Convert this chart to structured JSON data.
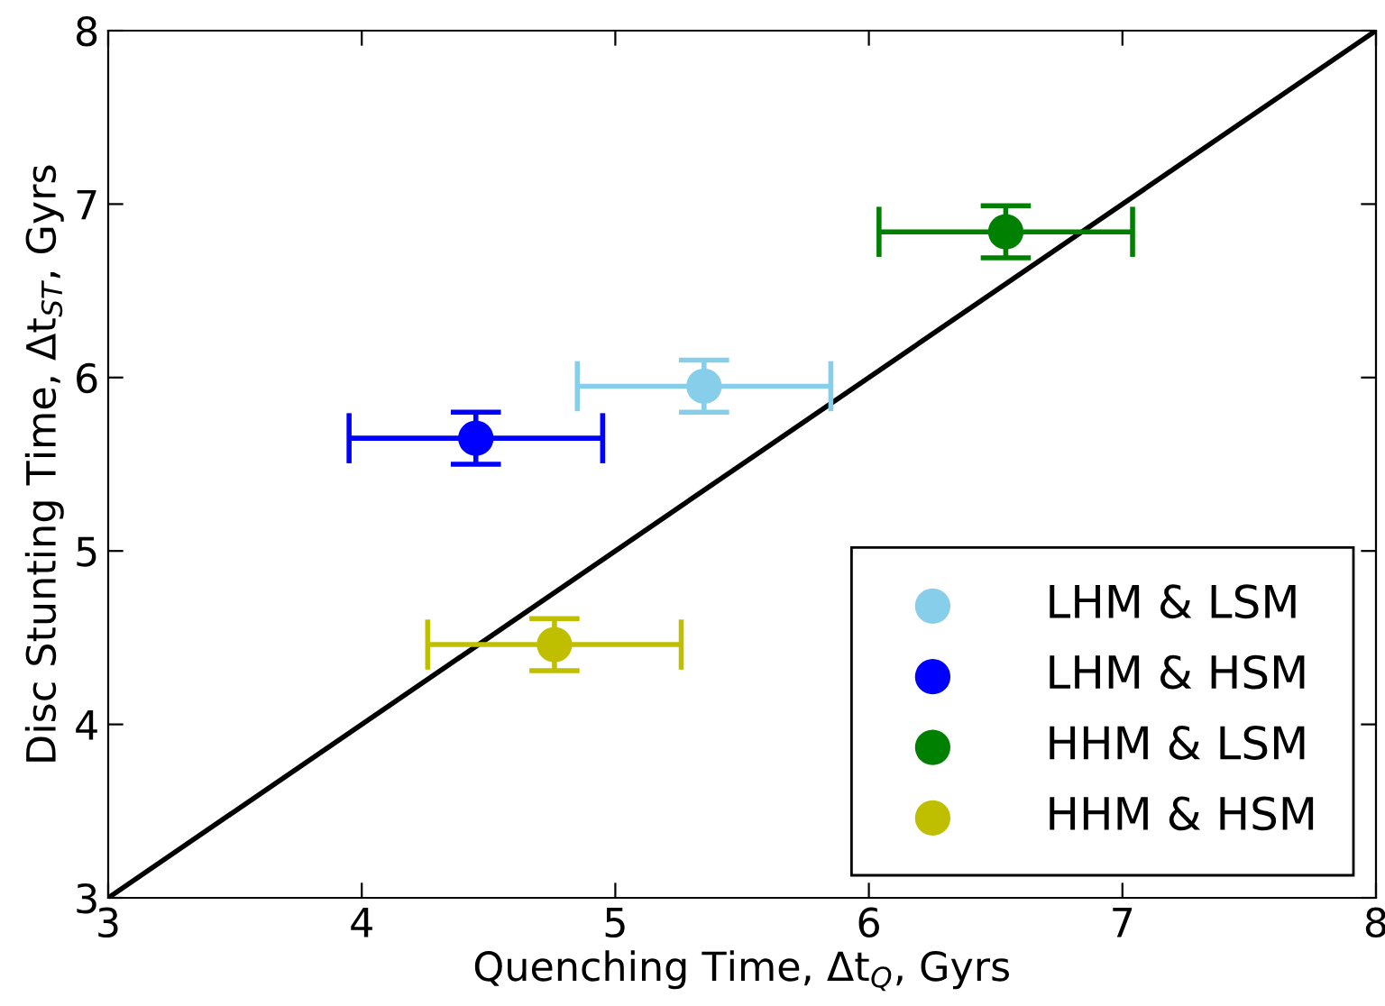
{
  "chart_data": {
    "type": "scatter",
    "xlabel": "Quenching Time, Δt$_{Q}$, Gyrs",
    "ylabel": "Disc Stunting Time, Δt$_{ST}$, Gyrs",
    "xlim": [
      3,
      8
    ],
    "ylim": [
      3,
      8
    ],
    "xticks": [
      3,
      4,
      5,
      6,
      7,
      8
    ],
    "yticks": [
      3,
      4,
      5,
      6,
      7,
      8
    ],
    "grid": false,
    "legend": "bottom right",
    "marker": "circle",
    "series": [
      {
        "name": "LHM & LSM",
        "color": "#87ceeb",
        "x": [
          5.35
        ],
        "values": [
          5.95
        ],
        "errors": [
          0.15
        ],
        "xerrors": [
          0.5
        ]
      },
      {
        "name": "LHM & HSM",
        "color": "#0000ff",
        "x": [
          4.45
        ],
        "values": [
          5.65
        ],
        "errors": [
          0.15
        ],
        "xerrors": [
          0.5
        ]
      },
      {
        "name": "HHM & LSM",
        "color": "#008000",
        "x": [
          6.54
        ],
        "values": [
          6.84
        ],
        "errors": [
          0.15
        ],
        "xerrors": [
          0.5
        ]
      },
      {
        "name": "HHM & HSM",
        "color": "#bfbf00",
        "x": [
          4.76
        ],
        "values": [
          4.46
        ],
        "errors": [
          0.15
        ],
        "xerrors": [
          0.5
        ]
      },
      {
        "type": "line",
        "color": "#000000",
        "x": [
          3,
          8
        ],
        "values": [
          3,
          8
        ],
        "line_style": "solid",
        "marker": "none"
      }
    ]
  }
}
